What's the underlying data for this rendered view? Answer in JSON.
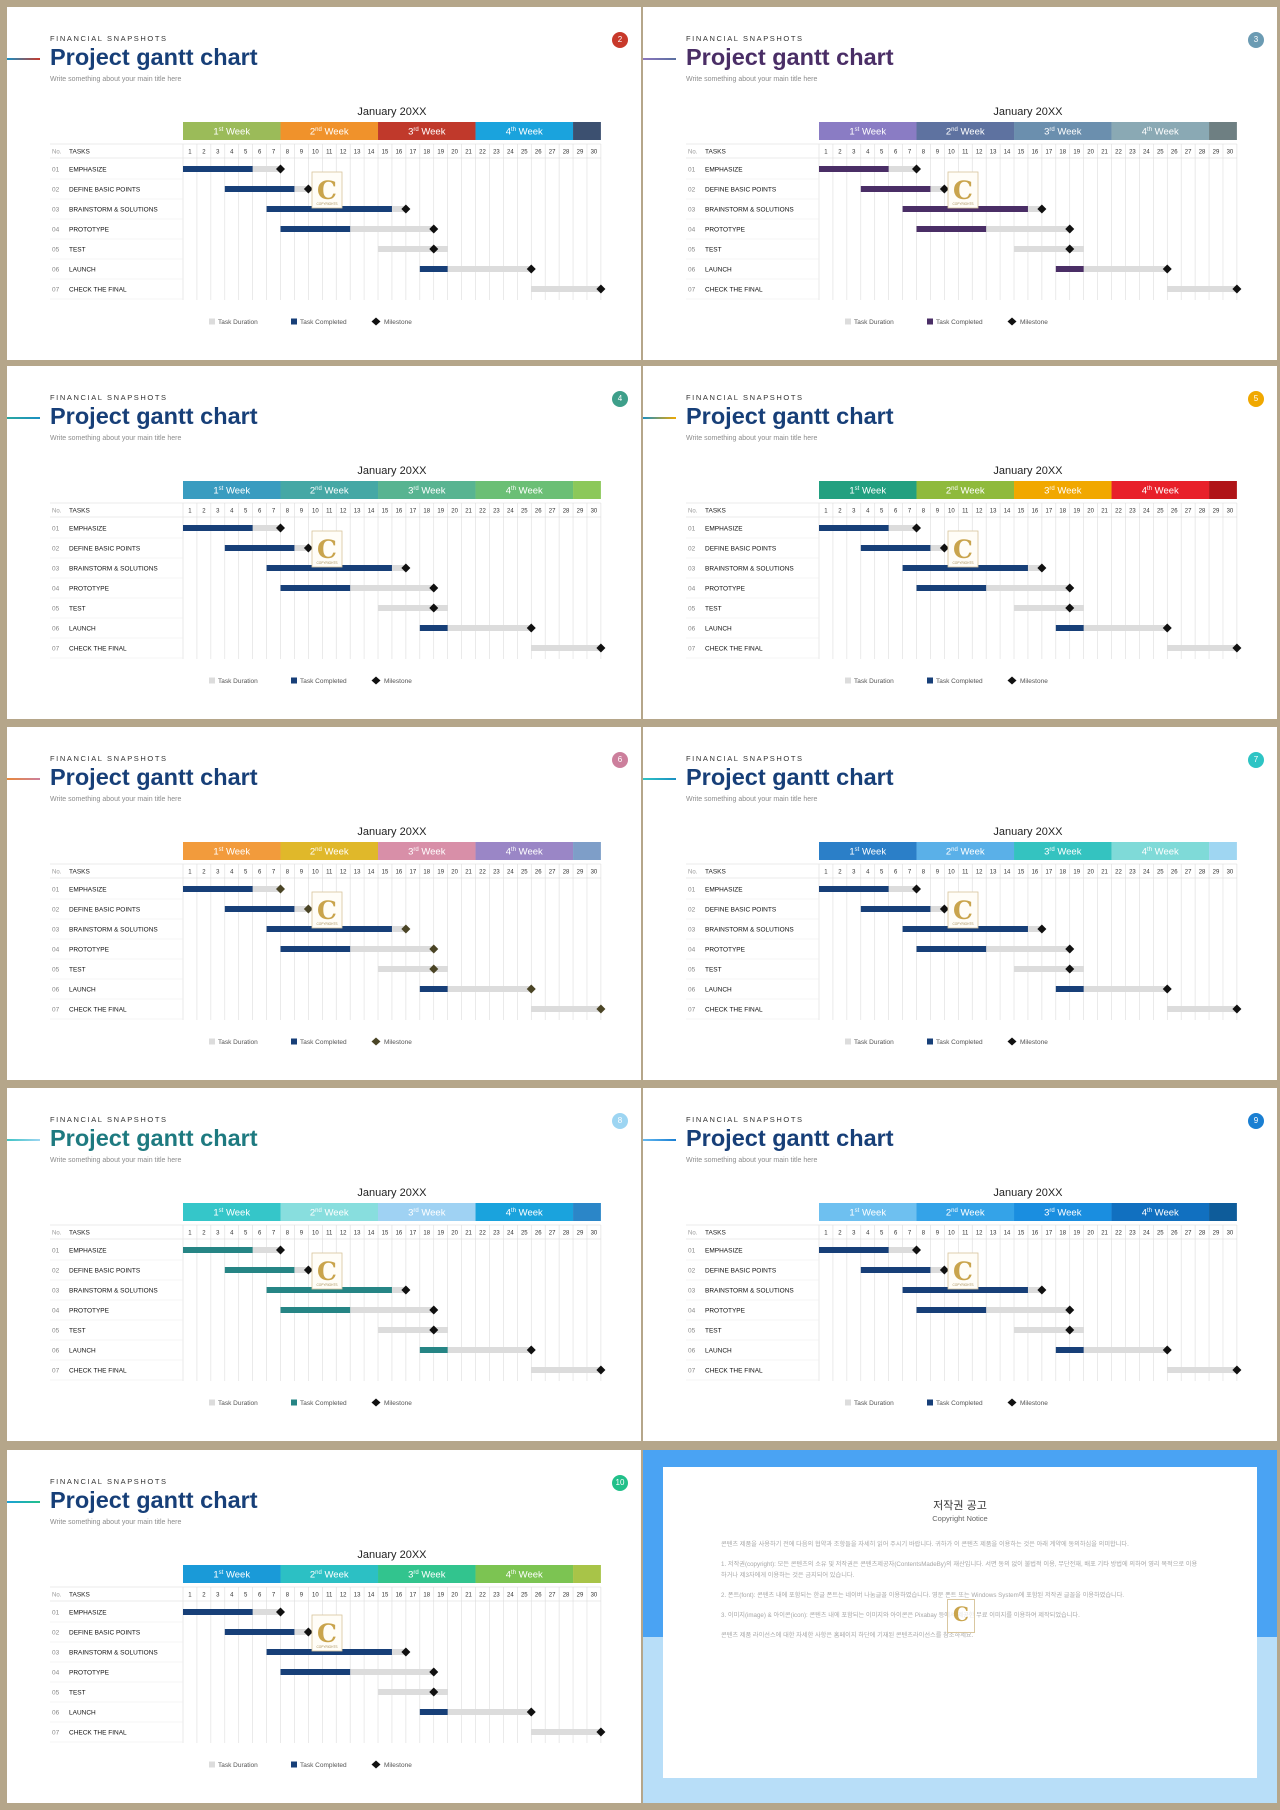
{
  "common": {
    "kicker": "FINANCIAL SNAPSHOTS",
    "title": "Project gantt chart",
    "subtitle": "Write something about your main title here",
    "month": "January 20XX",
    "no_header": "No.",
    "tasks_header": "TASKS",
    "week_prefixes": [
      "1",
      "2",
      "3",
      "4"
    ],
    "week_suffixes": [
      "st",
      "nd",
      "rd",
      "th"
    ],
    "week_word": "Week",
    "legend": [
      "Task Duration",
      "Task Completed",
      "Milestone"
    ],
    "logo_letter": "C",
    "logo_caption": "COPYRIGHTS"
  },
  "chart_data": {
    "type": "gantt",
    "days": [
      1,
      2,
      3,
      4,
      5,
      6,
      7,
      8,
      9,
      10,
      11,
      12,
      13,
      14,
      15,
      16,
      17,
      18,
      19,
      20,
      21,
      22,
      23,
      24,
      25,
      26,
      27,
      28,
      29,
      30
    ],
    "tasks": [
      {
        "no": "01",
        "name": "EMPHASIZE",
        "start": 1,
        "end": 7,
        "completed_end": 5,
        "milestone": 8
      },
      {
        "no": "02",
        "name": "DEFINE BASIC POINTS",
        "start": 4,
        "end": 9,
        "completed_end": 8,
        "milestone": 10
      },
      {
        "no": "03",
        "name": "BRAINSTORM & SOLUTIONS",
        "start": 7,
        "end": 16,
        "completed_end": 15,
        "milestone": 17
      },
      {
        "no": "04",
        "name": "PROTOTYPE",
        "start": 8,
        "end": 18,
        "completed_end": 12,
        "milestone": 19
      },
      {
        "no": "05",
        "name": "TEST",
        "start": 15,
        "end": 19,
        "completed_end": 14,
        "milestone": 19
      },
      {
        "no": "06",
        "name": "LAUNCH",
        "start": 18,
        "end": 25,
        "completed_end": 19,
        "milestone": 26
      },
      {
        "no": "07",
        "name": "CHECK THE FINAL",
        "start": 26,
        "end": 30,
        "completed_end": 25,
        "milestone": 31
      }
    ]
  },
  "slides": [
    {
      "number": "2",
      "badge": "#c8392b",
      "accent": [
        "#1a8fc2",
        "#c8392b"
      ],
      "title_color": "#173f78",
      "weeks": [
        "#9bbb59",
        "#f0922b",
        "#c0392b",
        "#1aa3dd"
      ],
      "tail": "#3c5070",
      "completed": "#173f78",
      "milestone": "#111111"
    },
    {
      "number": "3",
      "badge": "#6b9bb3",
      "accent": [
        "#8c76be",
        "#5a6fa0"
      ],
      "title_color": "#4a2e66",
      "weeks": [
        "#8a7cc4",
        "#5e72a0",
        "#6b8fae",
        "#8aa9b4"
      ],
      "tail": "#6e7f82",
      "completed": "#4a2e66",
      "milestone": "#111111"
    },
    {
      "number": "4",
      "badge": "#3e9f8a",
      "accent": [
        "#2aa8a0",
        "#1a8fc2"
      ],
      "title_color": "#173f78",
      "weeks": [
        "#3a9cc0",
        "#45a8a5",
        "#58b491",
        "#6bbf75"
      ],
      "tail": "#8cc85a",
      "completed": "#173f78",
      "milestone": "#111111"
    },
    {
      "number": "5",
      "badge": "#f0a800",
      "accent": [
        "#1a8fc2",
        "#f0a800"
      ],
      "title_color": "#173f78",
      "weeks": [
        "#22a080",
        "#8fba3c",
        "#f1a800",
        "#e8202a"
      ],
      "tail": "#b01418",
      "completed": "#173f78",
      "milestone": "#111111"
    },
    {
      "number": "6",
      "badge": "#cc7f9c",
      "accent": [
        "#e8883a",
        "#cc7f9c"
      ],
      "title_color": "#173f78",
      "weeks": [
        "#f29b3c",
        "#e0b82a",
        "#d88fa8",
        "#9a86c6"
      ],
      "tail": "#7e9ec8",
      "completed": "#173f78",
      "milestone": "#4b4526"
    },
    {
      "number": "7",
      "badge": "#2ec4c4",
      "accent": [
        "#2ec4c4",
        "#1a8fc2"
      ],
      "title_color": "#173f78",
      "weeks": [
        "#2b7fc8",
        "#5ab0e8",
        "#34c3c0",
        "#7fdad8"
      ],
      "tail": "#9fd6f2",
      "completed": "#173f78",
      "milestone": "#111111"
    },
    {
      "number": "8",
      "badge": "#9dd5f2",
      "accent": [
        "#40c4c4",
        "#9dd5f2"
      ],
      "title_color": "#1e7a80",
      "weeks": [
        "#35c6c9",
        "#88dede",
        "#9fd2f3",
        "#1aa3dd"
      ],
      "tail": "#2b86c8",
      "completed": "#268585",
      "milestone": "#111111"
    },
    {
      "number": "9",
      "badge": "#1a7fd2",
      "accent": [
        "#64b8f0",
        "#1a7fd2"
      ],
      "title_color": "#173f78",
      "weeks": [
        "#6ec0f0",
        "#34a3e8",
        "#1a8ee0",
        "#1170c0"
      ],
      "tail": "#0e5c9a",
      "completed": "#173f78",
      "milestone": "#111111"
    },
    {
      "number": "10",
      "badge": "#22c08a",
      "accent": [
        "#1aa0d8",
        "#22c08a"
      ],
      "title_color": "#173f78",
      "weeks": [
        "#1a9ad8",
        "#2cc0c4",
        "#32c48e",
        "#7cc452"
      ],
      "tail": "#a8c448",
      "completed": "#173f78",
      "milestone": "#111111"
    }
  ],
  "notice": {
    "title": "저작권 공고",
    "subtitle": "Copyright Notice",
    "paragraphs": [
      "콘텐츠 제품을 사용하기 전에 다음의 협약과 조항들을 자세히 읽어 주시기 바랍니다. 귀하가 이 콘텐츠 제품을 이용하는 것은 아래 계약에 동의하심을 의미합니다.",
      "1. 저작권(copyright): 모든 콘텐츠의 소유 및 저작권은 콘텐츠제공자(ContentsMadeBy)의 재산입니다. 서면 동의 없이 불법적 이용, 무단전재, 배포 기타 방법에 의하여 영리 목적으로 이용하거나 제3자에게 이용하는 것은 금지되어 있습니다.",
      "2. 폰트(font): 콘텐츠 내에 포함되는 한글 폰트는 네이버 나눔글꼴 이용하였습니다. 영문 폰트 또는 Windows System에 포함된 저작권 글꼴을 이용하였습니다.",
      "3. 이미지(image) & 아이콘(icon): 콘텐츠 내에 포함되는 이미지와 아이콘은 Pixabay 등에서 제공한 무료 이미지를 이용하여 제작되었습니다.",
      "콘텐츠 제품 라이선스에 대한 자세한 사항은 홈페이지 하단에 기재된 콘텐츠라이선스를 참조하세요."
    ]
  }
}
